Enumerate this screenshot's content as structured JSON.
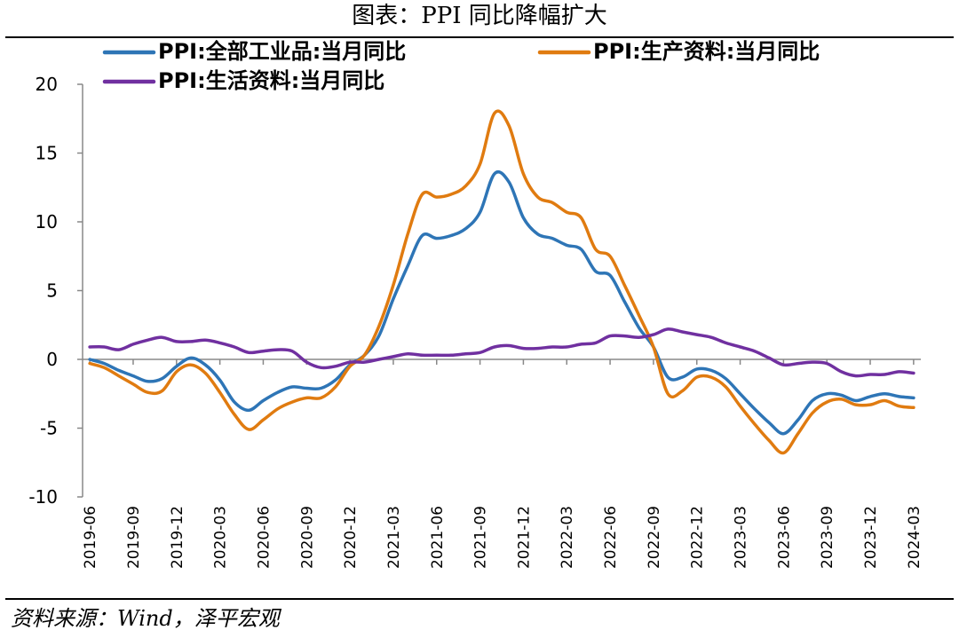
{
  "header": {
    "title": "图表：PPI 同比降幅扩大"
  },
  "footer": {
    "source": "资料来源：Wind，泽平宏观"
  },
  "chart_data": {
    "type": "line",
    "title": "图表：PPI 同比降幅扩大",
    "ylim": [
      -10,
      20
    ],
    "yticks": [
      -10,
      -5,
      0,
      5,
      10,
      15,
      20
    ],
    "tick_labels": [
      "2019-06",
      "2019-09",
      "2019-12",
      "2020-03",
      "2020-06",
      "2020-09",
      "2020-12",
      "2021-03",
      "2021-06",
      "2021-09",
      "2021-12",
      "2022-03",
      "2022-06",
      "2022-09",
      "2022-12",
      "2023-03",
      "2023-06",
      "2023-09",
      "2023-12",
      "2024-03"
    ],
    "x": [
      "2019-06",
      "2019-07",
      "2019-08",
      "2019-09",
      "2019-10",
      "2019-11",
      "2019-12",
      "2020-01",
      "2020-02",
      "2020-03",
      "2020-04",
      "2020-05",
      "2020-06",
      "2020-07",
      "2020-08",
      "2020-09",
      "2020-10",
      "2020-11",
      "2020-12",
      "2021-01",
      "2021-02",
      "2021-03",
      "2021-04",
      "2021-05",
      "2021-06",
      "2021-07",
      "2021-08",
      "2021-09",
      "2021-10",
      "2021-11",
      "2021-12",
      "2022-01",
      "2022-02",
      "2022-03",
      "2022-04",
      "2022-05",
      "2022-06",
      "2022-07",
      "2022-08",
      "2022-09",
      "2022-10",
      "2022-11",
      "2022-12",
      "2023-01",
      "2023-02",
      "2023-03",
      "2023-04",
      "2023-05",
      "2023-06",
      "2023-07",
      "2023-08",
      "2023-09",
      "2023-10",
      "2023-11",
      "2023-12",
      "2024-01",
      "2024-02",
      "2024-03"
    ],
    "grid": false,
    "legend_position": "top",
    "series": [
      {
        "name": "PPI:全部工业品:当月同比",
        "color": "#2E75B6",
        "values": [
          0.0,
          -0.3,
          -0.8,
          -1.2,
          -1.6,
          -1.4,
          -0.5,
          0.1,
          -0.4,
          -1.5,
          -3.1,
          -3.7,
          -3.0,
          -2.4,
          -2.0,
          -2.1,
          -2.1,
          -1.5,
          -0.4,
          0.3,
          1.7,
          4.4,
          6.8,
          9.0,
          8.8,
          9.0,
          9.5,
          10.7,
          13.5,
          12.9,
          10.3,
          9.1,
          8.8,
          8.3,
          8.0,
          6.4,
          6.1,
          4.2,
          2.3,
          0.9,
          -1.3,
          -1.3,
          -0.7,
          -0.8,
          -1.4,
          -2.5,
          -3.6,
          -4.6,
          -5.4,
          -4.4,
          -3.0,
          -2.5,
          -2.6,
          -3.0,
          -2.7,
          -2.5,
          -2.7,
          -2.8
        ]
      },
      {
        "name": "PPI:生产资料:当月同比",
        "color": "#E07B10",
        "values": [
          -0.3,
          -0.6,
          -1.2,
          -1.8,
          -2.4,
          -2.3,
          -0.9,
          -0.4,
          -1.0,
          -2.4,
          -4.0,
          -5.1,
          -4.4,
          -3.6,
          -3.1,
          -2.8,
          -2.8,
          -2.0,
          -0.5,
          0.3,
          2.4,
          5.4,
          9.1,
          12.0,
          11.8,
          12.0,
          12.6,
          14.2,
          17.9,
          17.0,
          13.5,
          11.8,
          11.4,
          10.7,
          10.3,
          8.0,
          7.5,
          5.4,
          3.2,
          0.9,
          -2.5,
          -2.3,
          -1.3,
          -1.3,
          -2.0,
          -3.4,
          -4.7,
          -5.9,
          -6.8,
          -5.4,
          -3.9,
          -3.1,
          -2.9,
          -3.3,
          -3.3,
          -3.0,
          -3.4,
          -3.5
        ]
      },
      {
        "name": "PPI:生活资料:当月同比",
        "color": "#7030A0",
        "values": [
          0.9,
          0.9,
          0.7,
          1.1,
          1.4,
          1.6,
          1.3,
          1.3,
          1.4,
          1.2,
          0.9,
          0.5,
          0.6,
          0.7,
          0.6,
          -0.2,
          -0.6,
          -0.5,
          -0.2,
          -0.2,
          0.0,
          0.2,
          0.4,
          0.3,
          0.3,
          0.3,
          0.4,
          0.5,
          0.9,
          1.0,
          0.8,
          0.8,
          0.9,
          0.9,
          1.1,
          1.2,
          1.7,
          1.7,
          1.6,
          1.8,
          2.2,
          2.0,
          1.8,
          1.6,
          1.2,
          0.9,
          0.6,
          0.1,
          -0.4,
          -0.3,
          -0.2,
          -0.3,
          -0.9,
          -1.2,
          -1.1,
          -1.1,
          -0.9,
          -1.0
        ]
      }
    ]
  }
}
